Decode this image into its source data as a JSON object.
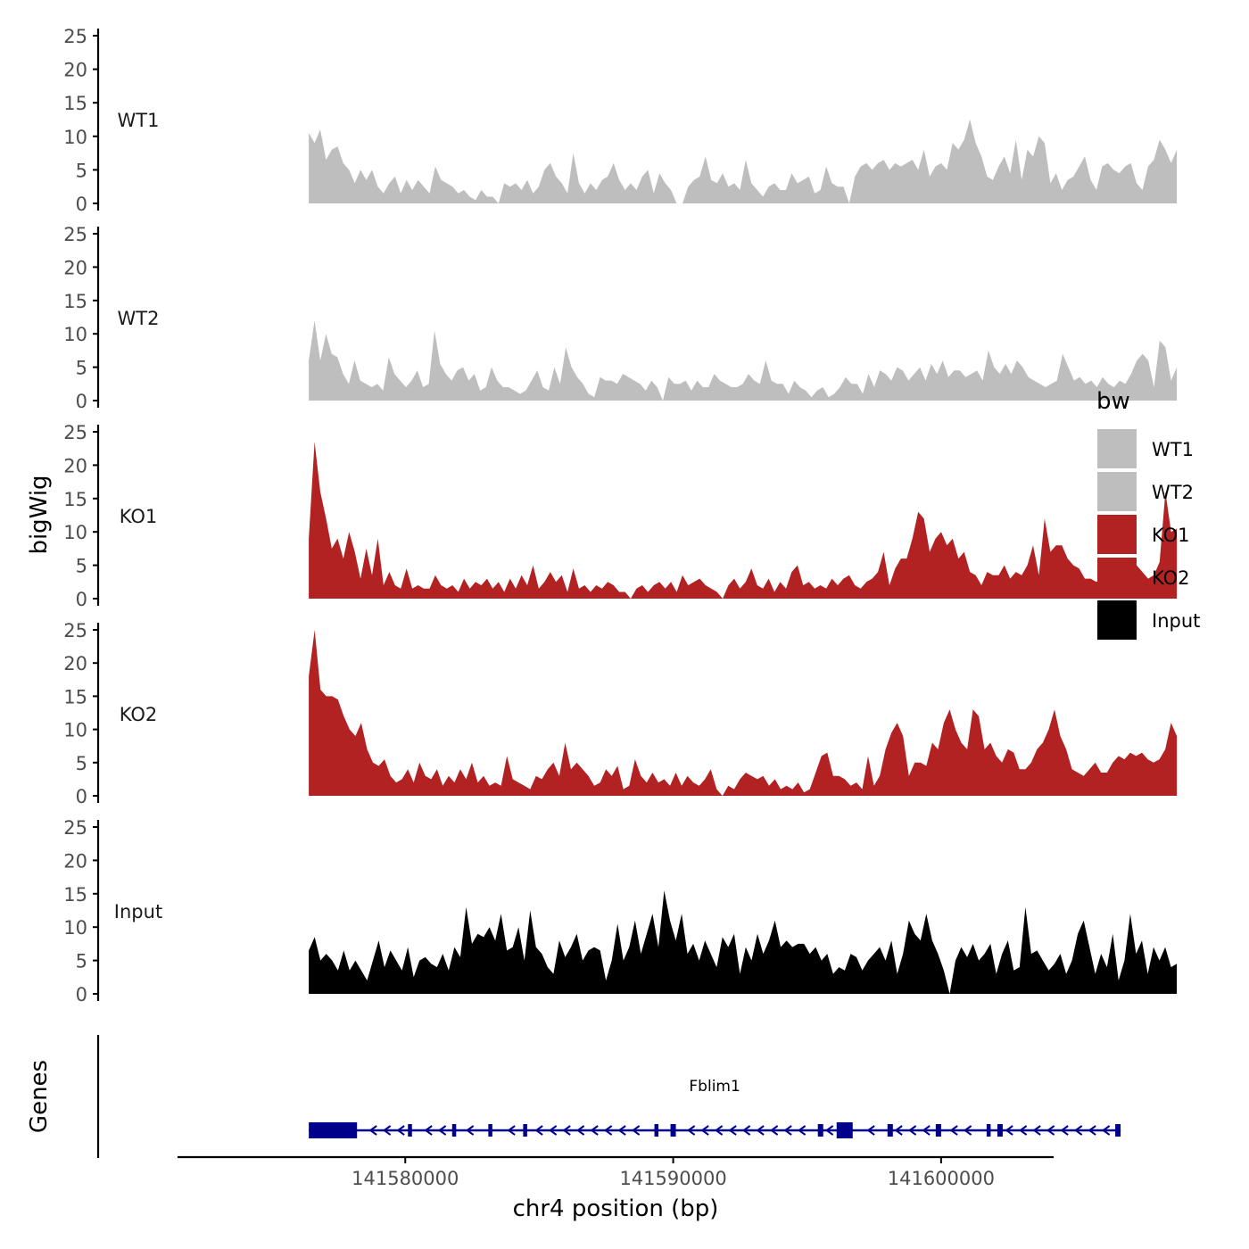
{
  "chart_data": {
    "type": "area",
    "title": "",
    "ylabel": "bigWig",
    "xlabel": "chr4 position (bp)",
    "genes_label": "Genes",
    "ylim": [
      0,
      25
    ],
    "y_ticks": [
      "0",
      "5",
      "10",
      "15",
      "20",
      "25"
    ],
    "x_range": [
      141571500,
      141604200
    ],
    "x_ticks": [
      {
        "value": 141580000,
        "label": "141580000"
      },
      {
        "value": 141590000,
        "label": "141590000"
      },
      {
        "value": 141600000,
        "label": "141600000"
      }
    ],
    "legend": {
      "title": "bw",
      "position": "right",
      "entries": [
        {
          "label": "WT1",
          "color": "#bebebe"
        },
        {
          "label": "WT2",
          "color": "#bebebe"
        },
        {
          "label": "KO1",
          "color": "#b22222"
        },
        {
          "label": "KO2",
          "color": "#b22222"
        },
        {
          "label": "Input",
          "color": "#000000"
        }
      ]
    },
    "series": [
      {
        "name": "WT1",
        "color": "#bebebe",
        "x_start": 141576400,
        "x_end": 141608800,
        "values": [
          10.5,
          9,
          11,
          6.5,
          8,
          8.5,
          6,
          5,
          3,
          5,
          3.5,
          5,
          2.5,
          1.5,
          3,
          4,
          1.5,
          3.5,
          2,
          3.5,
          2.5,
          1.5,
          5.5,
          3.5,
          3,
          2.5,
          1.5,
          2,
          1,
          0.5,
          2,
          1,
          1,
          0,
          3,
          2.5,
          3,
          2,
          3.5,
          1.5,
          2.5,
          5,
          6,
          4,
          3,
          1.5,
          7.5,
          3,
          1.5,
          3,
          2,
          3.5,
          4,
          6,
          3.5,
          2,
          3,
          2,
          4,
          5,
          1.5,
          4.5,
          3,
          2,
          0,
          0,
          2.5,
          3.5,
          4,
          7,
          3.5,
          3,
          4.5,
          2.5,
          3,
          2,
          6.5,
          3,
          2,
          1,
          2.5,
          3,
          2,
          2,
          4.5,
          3,
          3.5,
          4,
          1.5,
          2,
          5.5,
          3,
          2.5,
          2.5,
          0,
          4,
          5.5,
          6,
          5,
          6,
          6.5,
          5,
          6,
          5.5,
          6,
          6.5,
          5,
          8,
          4,
          5.5,
          6,
          5,
          9,
          8,
          9.5,
          12.5,
          9,
          7,
          4,
          3.5,
          5.5,
          7,
          4.5,
          9.5,
          3.5,
          8,
          7,
          10,
          9,
          3,
          4.5,
          2,
          3.5,
          4,
          5.5,
          7,
          3.5,
          2,
          5.5,
          6,
          5,
          4.5,
          5.5,
          6,
          3,
          2,
          5.5,
          6.5,
          9.5,
          8,
          6,
          8
        ]
      },
      {
        "name": "WT2",
        "color": "#bebebe",
        "x_start": 141576400,
        "x_end": 141608800,
        "values": [
          6,
          12,
          6,
          10,
          7,
          6.5,
          4,
          2.5,
          6,
          3,
          2.5,
          2,
          2.5,
          1.5,
          6.5,
          4,
          3,
          2,
          3,
          4.5,
          2,
          2.5,
          10.5,
          5.5,
          4,
          3,
          4.5,
          5,
          3,
          4,
          1.5,
          2,
          5,
          3,
          2,
          2,
          1.5,
          1,
          1.5,
          3,
          4.5,
          2,
          1.5,
          5,
          2.5,
          8,
          5,
          3.5,
          2.5,
          1,
          0.5,
          3.5,
          3,
          3,
          2.5,
          4,
          3.5,
          3,
          2.5,
          1.5,
          3,
          2,
          0,
          3.5,
          2.5,
          2.5,
          3,
          1.5,
          3,
          2,
          2,
          4,
          3,
          2.5,
          2,
          2,
          2.5,
          4,
          3,
          2.5,
          6,
          3,
          2.5,
          2.5,
          1,
          3,
          2,
          1.5,
          0.5,
          1.5,
          2,
          0.5,
          1,
          2,
          3.5,
          2.5,
          2.5,
          1,
          4,
          2,
          4.5,
          4,
          3,
          5,
          4.5,
          3,
          4,
          5,
          3,
          5.5,
          4,
          6,
          3.5,
          4.5,
          4.5,
          3.5,
          4,
          4.5,
          3,
          7.5,
          5,
          4,
          5.5,
          4,
          6,
          5,
          3.5,
          3,
          2.5,
          2,
          2.5,
          3,
          7,
          5,
          3,
          3.5,
          2.5,
          3,
          2,
          3.5,
          2.5,
          2,
          3,
          2.5,
          4,
          6,
          7,
          6,
          2,
          9,
          8,
          3,
          5
        ]
      },
      {
        "name": "KO1",
        "color": "#b22222",
        "x_start": 141576400,
        "x_end": 141608800,
        "values": [
          9,
          23.5,
          16,
          12,
          7.5,
          9,
          6,
          10,
          7,
          3,
          7.5,
          3.5,
          9,
          2,
          4,
          2,
          1.5,
          4.5,
          1.5,
          2,
          1.5,
          1.5,
          3.5,
          2,
          1.5,
          2,
          1,
          3,
          1.5,
          2.5,
          2,
          3,
          1.5,
          2.5,
          1,
          3,
          1.5,
          3.5,
          2,
          5,
          1.5,
          2.5,
          4,
          2.5,
          3.5,
          1,
          4.5,
          1.5,
          2,
          1,
          2,
          1.5,
          2.5,
          2,
          1,
          1,
          0,
          1.5,
          2,
          1,
          2,
          2.5,
          1.5,
          2.5,
          1,
          3.5,
          2,
          2.5,
          3,
          2,
          1.5,
          1,
          0,
          2,
          3,
          1.5,
          2.5,
          4.5,
          2,
          1.5,
          3,
          1,
          2.5,
          1.5,
          4,
          5,
          2,
          2.5,
          1.5,
          2,
          1.5,
          3,
          2,
          3,
          3.5,
          2,
          1.5,
          2.5,
          3,
          4,
          7,
          2,
          4.5,
          6,
          6,
          9,
          13,
          12,
          7,
          9,
          10,
          8,
          9,
          6,
          7,
          4,
          3.5,
          2,
          4,
          3.5,
          3.5,
          5,
          3,
          4,
          3.5,
          5,
          8,
          3.5,
          12,
          7,
          8,
          8,
          6,
          5,
          4.5,
          3,
          3,
          2.5,
          3,
          2.5,
          4,
          4.5,
          3,
          3,
          5,
          4,
          3,
          3.5,
          5.5,
          16,
          10,
          10.5
        ]
      },
      {
        "name": "KO2",
        "color": "#b22222",
        "x_start": 141576400,
        "x_end": 141608800,
        "values": [
          18,
          25,
          16,
          15,
          15,
          14.5,
          12,
          10,
          9,
          11,
          7,
          5,
          4.5,
          5.5,
          3,
          2,
          2.5,
          4,
          2,
          5,
          3,
          2.5,
          4,
          1.5,
          3,
          2,
          4,
          2.5,
          5,
          2,
          3,
          1.5,
          2,
          1.5,
          6,
          2.5,
          2,
          1.5,
          1,
          3,
          2.5,
          4,
          5,
          3,
          8,
          4,
          5,
          4,
          3,
          1.5,
          2,
          4,
          3,
          4.5,
          1,
          1.5,
          5.5,
          3,
          2,
          3.5,
          2,
          2.5,
          1.5,
          3.5,
          1.5,
          3,
          2,
          1.5,
          2.5,
          4,
          1,
          0,
          1.5,
          1,
          2.5,
          3.5,
          3,
          2.5,
          3,
          1.5,
          2.5,
          1,
          1.5,
          1,
          2,
          0.5,
          1,
          3.5,
          6,
          6.5,
          3,
          3,
          2.5,
          1.5,
          2,
          1,
          6,
          1.5,
          3,
          7,
          9.5,
          11,
          9,
          3,
          5,
          5,
          4.5,
          8,
          7,
          11,
          13,
          10,
          8,
          7,
          13,
          12,
          7,
          8,
          6,
          5,
          7,
          6.5,
          4,
          4,
          5,
          7,
          8,
          10,
          13,
          9,
          7,
          4,
          3.5,
          3,
          4,
          5,
          3.5,
          3.5,
          5,
          6,
          5.5,
          6.5,
          6,
          6.5,
          5.5,
          5,
          5.5,
          7,
          11,
          9
        ]
      },
      {
        "name": "Input",
        "color": "#000000",
        "x_start": 141576400,
        "x_end": 141608800,
        "values": [
          6.5,
          8.5,
          5,
          6,
          5,
          3.5,
          6.5,
          3.5,
          5,
          3.5,
          2,
          5,
          8,
          4,
          6.5,
          5,
          3.5,
          7,
          2.5,
          5,
          5.5,
          4.5,
          4,
          6,
          3.5,
          7,
          5.5,
          13,
          7.5,
          9,
          8.5,
          10,
          8,
          12,
          6.5,
          7,
          10,
          5,
          12.5,
          7,
          6,
          4,
          3,
          8,
          5.5,
          7,
          9,
          5,
          6.5,
          7,
          6.5,
          2,
          5,
          10.5,
          5,
          7,
          11,
          6,
          9,
          12,
          7,
          15.5,
          11,
          8,
          12,
          6,
          7.5,
          5,
          8,
          6,
          4,
          8.5,
          7,
          9,
          3,
          7,
          5,
          9,
          6,
          8,
          11,
          7,
          8,
          7,
          7.5,
          7.5,
          6,
          7,
          5,
          6,
          3,
          4,
          3.5,
          6,
          5.5,
          3.5,
          5,
          6,
          7,
          5,
          8,
          3,
          6,
          11,
          9,
          8,
          12,
          8,
          6,
          3.5,
          0,
          5,
          7,
          5.5,
          7.5,
          5,
          6,
          7.5,
          3,
          6,
          8,
          3.5,
          4,
          13,
          6,
          6.5,
          5,
          3.5,
          4.5,
          6,
          3,
          5,
          9,
          11,
          7,
          3,
          6,
          4,
          9,
          2,
          5,
          12,
          6,
          8,
          3,
          7,
          5,
          7,
          4,
          4.5
        ]
      }
    ],
    "genes": {
      "name": "Fblim1",
      "strand": "-",
      "color": "#00008b",
      "start": 141576400,
      "end": 141606700,
      "exons": [
        {
          "start": 141576400,
          "end": 141578200
        },
        {
          "start": 141580100,
          "end": 141580250
        },
        {
          "start": 141581750,
          "end": 141581900
        },
        {
          "start": 141583100,
          "end": 141583250
        },
        {
          "start": 141584400,
          "end": 141584550
        },
        {
          "start": 141589300,
          "end": 141589450
        },
        {
          "start": 141589900,
          "end": 141590100
        },
        {
          "start": 141595400,
          "end": 141595600
        },
        {
          "start": 141596100,
          "end": 141596700
        },
        {
          "start": 141598000,
          "end": 141598200
        },
        {
          "start": 141599800,
          "end": 141600000
        },
        {
          "start": 141601700,
          "end": 141601850
        },
        {
          "start": 141602100,
          "end": 141602300
        },
        {
          "start": 141606500,
          "end": 141606700
        }
      ]
    }
  }
}
